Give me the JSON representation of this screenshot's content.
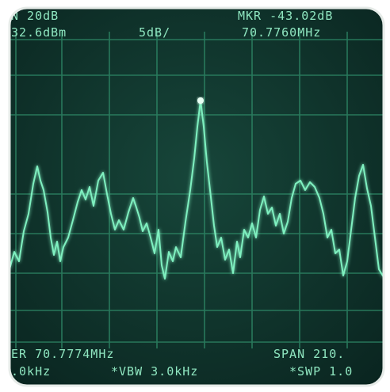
{
  "screen": {
    "top_left_1": "N 20dB",
    "top_left_2": "32.6dBm",
    "scale": "5dB/",
    "marker_level": "MKR -43.02dB",
    "marker_freq": "70.7760MHz",
    "center": "ER 70.7774MHz",
    "span": "SPAN 210.",
    "rbw": ".0kHz",
    "vbw": "*VBW 3.0kHz",
    "sweep": "*SWP 1.0"
  }
}
